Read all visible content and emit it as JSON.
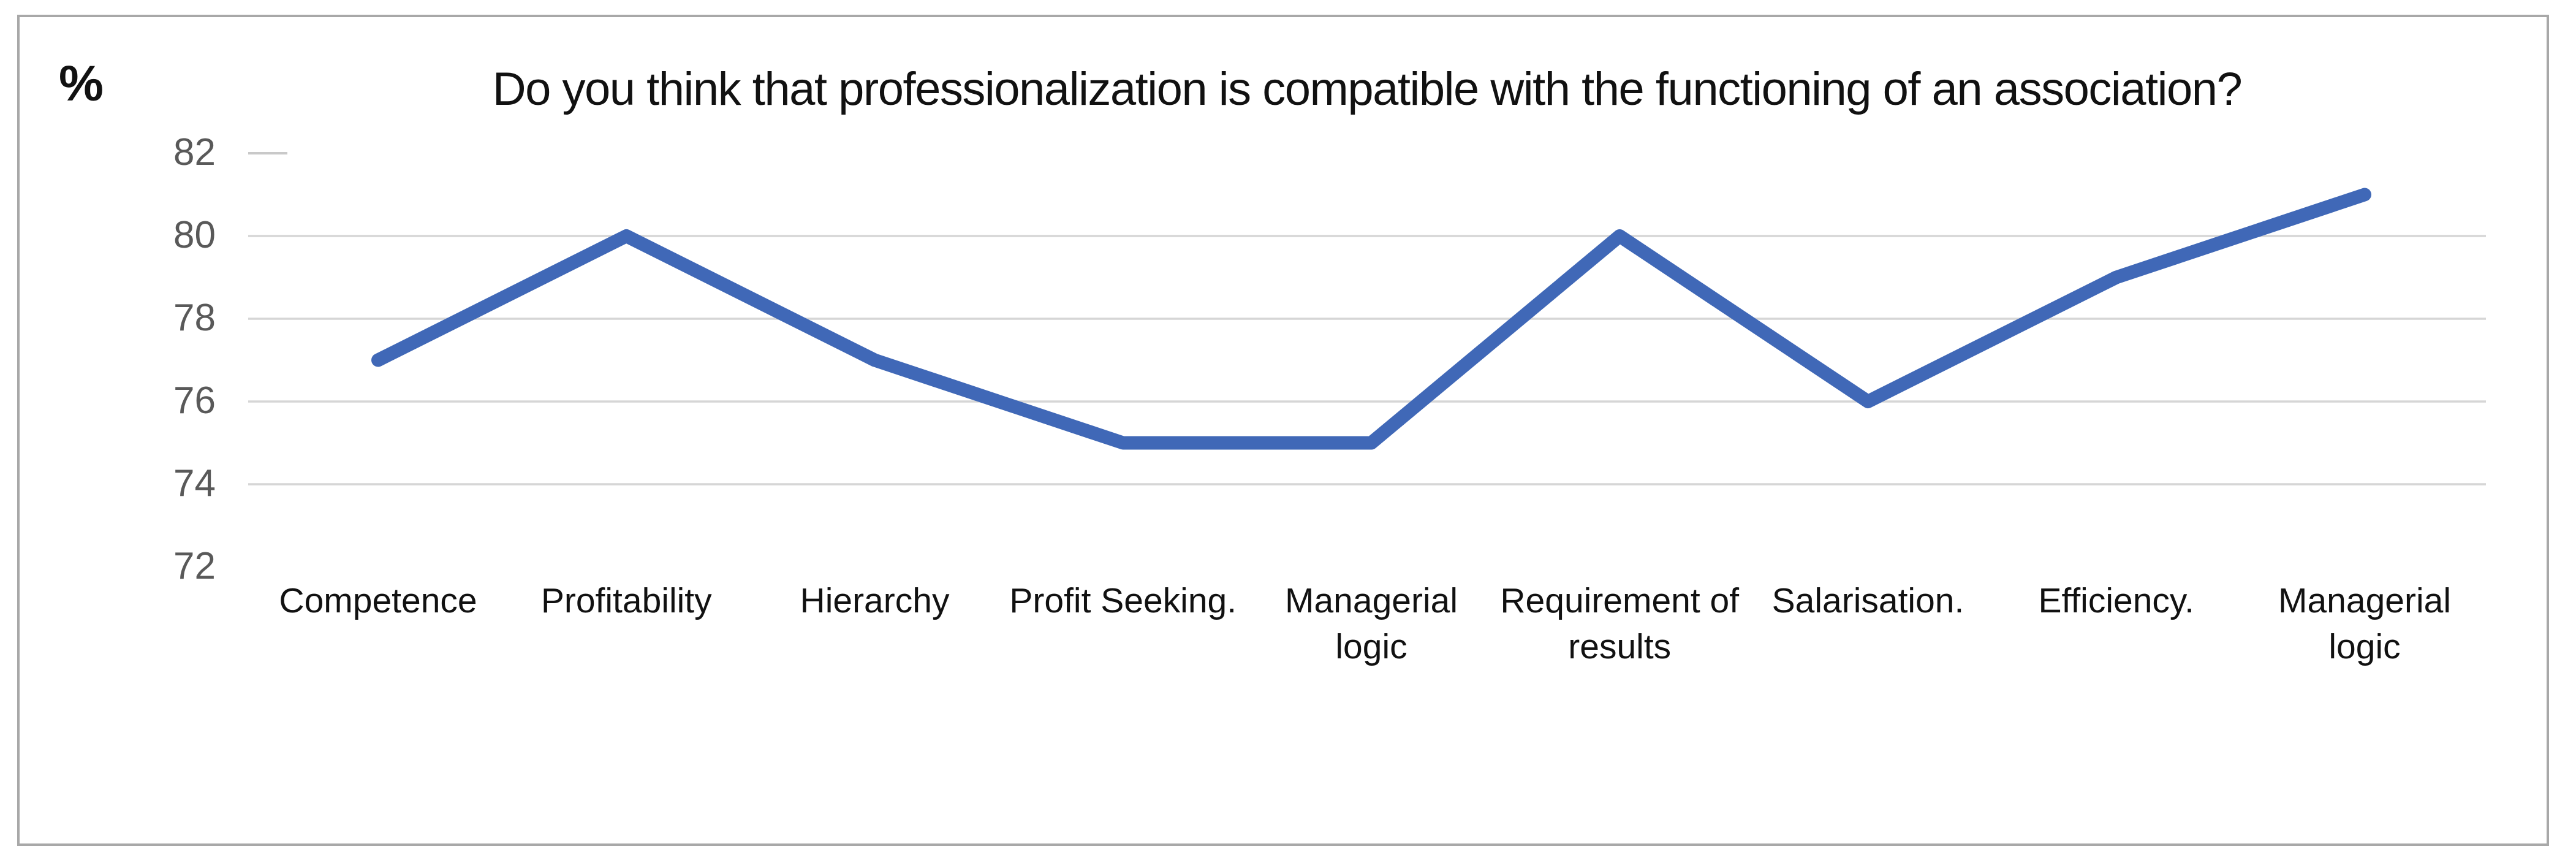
{
  "figure": {
    "kind": "line-chart-image"
  },
  "colors": {
    "line": "#4068B7",
    "gridline": "#D6D6D6",
    "stub_tick": "#C9C9C9",
    "frame_border": "#A8A8A8",
    "tick_label": "#595959",
    "text": "#111111",
    "background": "#FFFFFF"
  },
  "chart_data": {
    "type": "line",
    "title": "Do you think that professionalization is compatible with the functioning of an association?",
    "ylabel": "%",
    "xlabel": "",
    "categories": [
      "Competence",
      "Profitability",
      "Hierarchy",
      "Profit Seeking.",
      "Managerial logic",
      "Requirement of results",
      "Salarisation.",
      "Efficiency.",
      "Managerial logic"
    ],
    "values": [
      77,
      80,
      77,
      75,
      75,
      80,
      76,
      79,
      81
    ],
    "ylim": [
      72,
      82
    ],
    "yticks": [
      82,
      80,
      78,
      76,
      74,
      72
    ],
    "gridlines_at": [
      80,
      78,
      76,
      74
    ],
    "stub_tick_at": 82,
    "grid": "horizontal",
    "legend": "none",
    "marker": "none"
  }
}
